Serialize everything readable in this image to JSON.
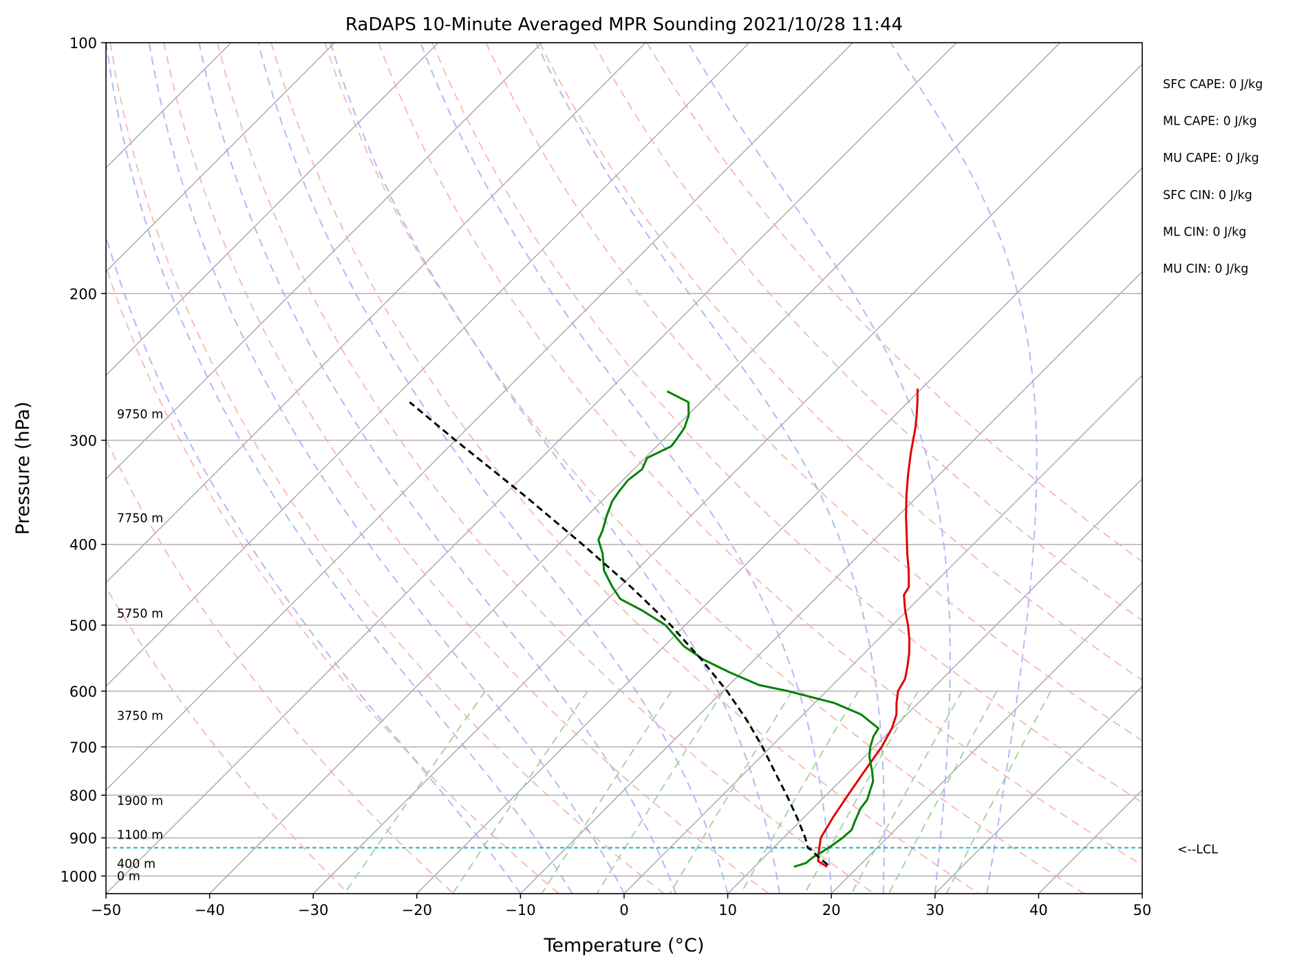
{
  "chart_data": {
    "type": "skew-t",
    "title": "RaDAPS 10-Minute Averaged MPR Sounding 2021/10/28 11:44",
    "xlabel": "Temperature (°C)",
    "ylabel": "Pressure (hPa)",
    "xlim": [
      -50,
      50
    ],
    "ylim": [
      1050,
      100
    ],
    "y_scale": "log",
    "grid": true,
    "xticks": [
      -50,
      -40,
      -30,
      -20,
      -10,
      0,
      10,
      20,
      30,
      40,
      50
    ],
    "xtick_labels": [
      "−50",
      "−40",
      "−30",
      "−20",
      "−10",
      "0",
      "10",
      "20",
      "30",
      "40",
      "50"
    ],
    "yticks": [
      100,
      200,
      300,
      400,
      500,
      600,
      700,
      800,
      900,
      1000
    ],
    "ytick_labels": [
      "100",
      "200",
      "300",
      "400",
      "500",
      "600",
      "700",
      "800",
      "900",
      "1000"
    ],
    "isotherms_c": [
      -120,
      -110,
      -100,
      -90,
      -80,
      -70,
      -60,
      -50,
      -40,
      -30,
      -20,
      -10,
      0,
      10,
      20,
      30,
      40,
      50
    ],
    "dry_adiabats_c": [
      -30,
      -20,
      -10,
      0,
      10,
      20,
      30,
      40,
      50,
      60,
      70,
      80,
      90,
      100
    ],
    "moist_adiabats_c": [
      -10,
      -5,
      0,
      5,
      10,
      15,
      20,
      25,
      30,
      35
    ],
    "mixing_ratios_gkg": [
      0.4,
      1,
      2,
      3,
      5,
      8,
      12,
      16,
      20,
      28
    ],
    "series": [
      {
        "kind": "temperature",
        "color": "#e00000",
        "points": [
          [
            975,
            17.0
          ],
          [
            960,
            15.6
          ],
          [
            940,
            14.9
          ],
          [
            900,
            13.6
          ],
          [
            850,
            12.8
          ],
          [
            800,
            12.1
          ],
          [
            750,
            11.4
          ],
          [
            700,
            10.7
          ],
          [
            665,
            9.9
          ],
          [
            640,
            9.0
          ],
          [
            620,
            7.9
          ],
          [
            600,
            6.9
          ],
          [
            580,
            6.4
          ],
          [
            560,
            5.4
          ],
          [
            540,
            4.3
          ],
          [
            520,
            3.0
          ],
          [
            500,
            1.5
          ],
          [
            480,
            -0.2
          ],
          [
            460,
            -1.8
          ],
          [
            450,
            -2.1
          ],
          [
            430,
            -3.7
          ],
          [
            410,
            -5.5
          ],
          [
            390,
            -7.3
          ],
          [
            370,
            -9.2
          ],
          [
            350,
            -11.1
          ],
          [
            330,
            -13.0
          ],
          [
            310,
            -14.9
          ],
          [
            290,
            -16.8
          ],
          [
            280,
            -17.9
          ],
          [
            270,
            -19.1
          ],
          [
            260,
            -20.4
          ]
        ]
      },
      {
        "kind": "dewpoint",
        "color": "#008000",
        "points": [
          [
            975,
            13.8
          ],
          [
            965,
            14.6
          ],
          [
            950,
            14.7
          ],
          [
            935,
            15.1
          ],
          [
            920,
            15.4
          ],
          [
            900,
            15.7
          ],
          [
            880,
            15.8
          ],
          [
            860,
            15.3
          ],
          [
            830,
            14.6
          ],
          [
            810,
            14.4
          ],
          [
            790,
            13.8
          ],
          [
            770,
            13.2
          ],
          [
            750,
            12.2
          ],
          [
            720,
            10.5
          ],
          [
            700,
            9.6
          ],
          [
            680,
            8.9
          ],
          [
            665,
            8.6
          ],
          [
            640,
            5.6
          ],
          [
            620,
            1.9
          ],
          [
            600,
            -3.7
          ],
          [
            590,
            -7.1
          ],
          [
            570,
            -11.1
          ],
          [
            550,
            -14.9
          ],
          [
            530,
            -18.1
          ],
          [
            500,
            -21.9
          ],
          [
            480,
            -25.6
          ],
          [
            465,
            -28.8
          ],
          [
            450,
            -30.7
          ],
          [
            430,
            -33.1
          ],
          [
            410,
            -34.9
          ],
          [
            395,
            -36.6
          ],
          [
            385,
            -37.1
          ],
          [
            370,
            -38.1
          ],
          [
            355,
            -39.0
          ],
          [
            345,
            -39.3
          ],
          [
            335,
            -39.5
          ],
          [
            325,
            -39.2
          ],
          [
            315,
            -39.8
          ],
          [
            305,
            -38.6
          ],
          [
            298,
            -38.8
          ],
          [
            290,
            -39.1
          ],
          [
            280,
            -39.9
          ],
          [
            270,
            -41.2
          ],
          [
            262,
            -44.3
          ]
        ]
      },
      {
        "kind": "parcel",
        "color": "#000000",
        "dashed": true,
        "points": [
          [
            970,
            16.9
          ],
          [
            950,
            15.3
          ],
          [
            930,
            13.8
          ],
          [
            925,
            13.3
          ],
          [
            900,
            12.1
          ],
          [
            850,
            9.3
          ],
          [
            800,
            6.2
          ],
          [
            750,
            2.8
          ],
          [
            700,
            -0.8
          ],
          [
            650,
            -4.9
          ],
          [
            600,
            -9.6
          ],
          [
            550,
            -15.1
          ],
          [
            500,
            -21.4
          ],
          [
            450,
            -28.9
          ],
          [
            400,
            -37.7
          ],
          [
            350,
            -47.9
          ],
          [
            300,
            -60.0
          ],
          [
            270,
            -68.1
          ]
        ]
      }
    ],
    "lcl_pressure_hpa": 925,
    "lcl_label": "<--LCL",
    "height_labels": [
      {
        "text": "9750 m",
        "p": 279
      },
      {
        "text": "7750 m",
        "p": 372
      },
      {
        "text": "5750 m",
        "p": 484
      },
      {
        "text": "3750 m",
        "p": 642
      },
      {
        "text": "1900 m",
        "p": 812
      },
      {
        "text": "1100 m",
        "p": 892
      },
      {
        "text": "400 m",
        "p": 967
      },
      {
        "text": "0 m",
        "p": 1000
      }
    ],
    "parameters": [
      "SFC CAPE: 0 J/kg",
      "ML CAPE: 0 J/kg",
      "MU CAPE: 0 J/kg",
      "SFC CIN: 0 J/kg",
      "ML CIN: 0 J/kg",
      "MU CIN: 0 J/kg"
    ],
    "colors": {
      "isotherm": "#aaaaaa",
      "dry_adiabat": "#f4a6a6",
      "moist_adiabat": "#a9a9f5",
      "mixing_ratio": "#9ccf9c",
      "lcl_line": "#17b6bf"
    }
  }
}
